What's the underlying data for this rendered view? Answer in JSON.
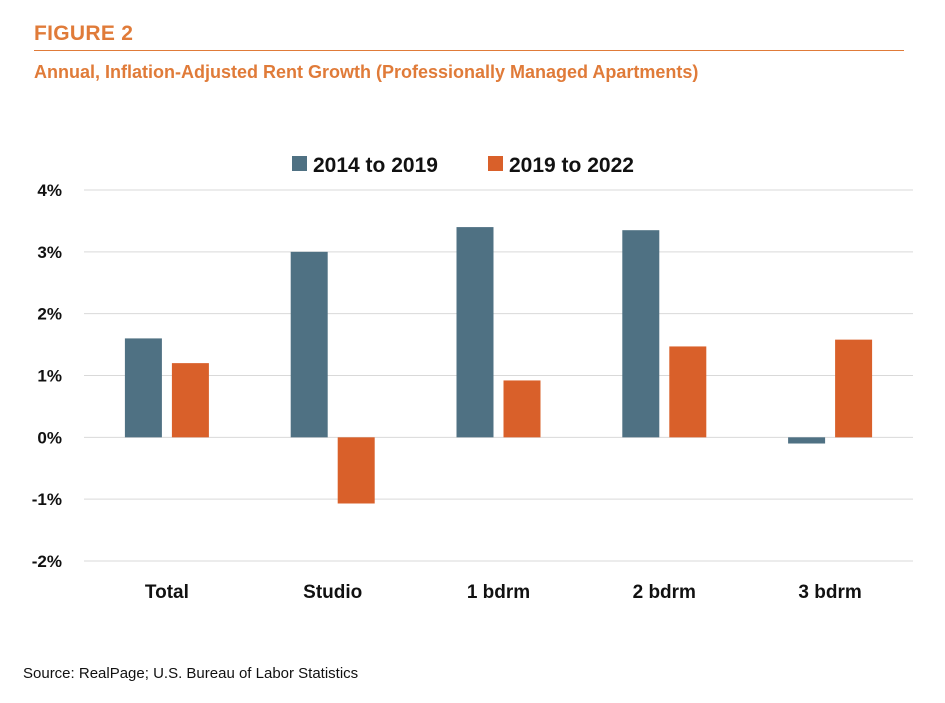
{
  "header": {
    "figure_label": "FIGURE 2",
    "title": "Annual, Inflation-Adjusted Rent Growth (Professionally Managed Apartments)"
  },
  "footer": {
    "source": "Source: RealPage; U.S. Bureau of Labor Statistics"
  },
  "colors": {
    "accent": "#E07B39",
    "series_1": "#4F7183",
    "series_2": "#D9602A",
    "grid": "#D9D9D9",
    "axis": "#D9D9D9"
  },
  "chart_data": {
    "type": "bar",
    "title": "",
    "xlabel": "",
    "ylabel": "",
    "categories": [
      "Total",
      "Studio",
      "1 bdrm",
      "2 bdrm",
      "3 bdrm"
    ],
    "series": [
      {
        "name": "2014 to 2019",
        "values": [
          1.6,
          3.0,
          3.4,
          3.35,
          -0.1
        ]
      },
      {
        "name": "2019 to 2022",
        "values": [
          1.2,
          -1.07,
          0.92,
          1.47,
          1.58
        ]
      }
    ],
    "ylim": [
      -2,
      4
    ],
    "yticks": [
      4,
      3,
      2,
      1,
      0,
      -1,
      -2
    ],
    "ytick_labels": [
      "4%",
      "3%",
      "2%",
      "1%",
      "0%",
      "-1%",
      "-2%"
    ],
    "legend": "top-center",
    "grid": true
  }
}
